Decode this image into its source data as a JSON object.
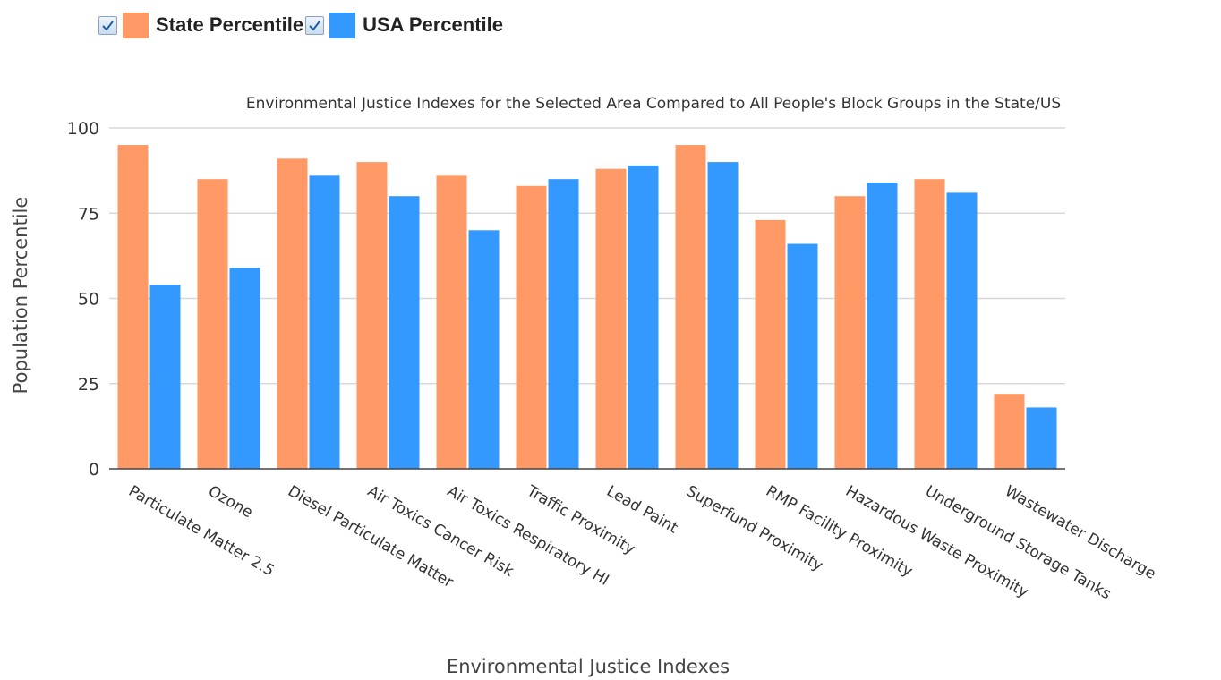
{
  "legend": {
    "items": [
      {
        "label": "State Percentile",
        "color": "#ff9966",
        "checked": true
      },
      {
        "label": "USA Percentile",
        "color": "#3399ff",
        "checked": true
      }
    ]
  },
  "chart_data": {
    "type": "bar",
    "title": "Environmental Justice Indexes for the Selected Area Compared to All People's Block Groups in the State/US",
    "xlabel": "Environmental Justice Indexes",
    "ylabel": "Population Percentile",
    "ylim": [
      0,
      100
    ],
    "yticks": [
      0,
      25,
      50,
      75,
      100
    ],
    "grid": true,
    "legend_position": "top-left",
    "categories": [
      "Particulate Matter 2.5",
      "Ozone",
      "Diesel Particulate Matter",
      "Air Toxics Cancer Risk",
      "Air Toxics Respiratory HI",
      "Traffic Proximity",
      "Lead Paint",
      "Superfund Proximity",
      "RMP Facility Proximity",
      "Hazardous Waste Proximity",
      "Underground Storage Tanks",
      "Wastewater Discharge"
    ],
    "series": [
      {
        "name": "State Percentile",
        "color": "#ff9966",
        "values": [
          95,
          85,
          91,
          90,
          86,
          83,
          88,
          95,
          73,
          80,
          85,
          22
        ]
      },
      {
        "name": "USA Percentile",
        "color": "#3399ff",
        "values": [
          54,
          59,
          86,
          80,
          70,
          85,
          89,
          90,
          66,
          84,
          81,
          18
        ]
      }
    ]
  }
}
